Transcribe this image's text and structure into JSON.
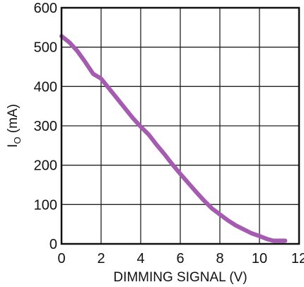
{
  "chart_data": {
    "type": "line",
    "xlabel": "DIMMING SIGNAL (V)",
    "ylabel": "I",
    "ylabel_sub": "O",
    "ylabel_unit": " (mA)",
    "xlim": [
      0,
      12
    ],
    "ylim": [
      0,
      600
    ],
    "xticks": [
      "0",
      "2",
      "4",
      "6",
      "8",
      "10",
      "12"
    ],
    "yticks": [
      "0",
      "100",
      "200",
      "300",
      "400",
      "500",
      "600"
    ],
    "grid": true,
    "line_color": "#A45BB0",
    "series": [
      {
        "x": [
          0,
          0.4,
          0.8,
          1.2,
          1.6,
          2.0,
          2.4,
          2.8,
          3.2,
          3.6,
          4.0,
          4.4,
          4.8,
          5.2,
          5.6,
          6.0,
          6.4,
          6.8,
          7.2,
          7.6,
          8.0,
          8.4,
          8.8,
          9.2,
          9.6,
          10.0,
          10.4,
          10.7,
          11.0,
          11.3
        ],
        "y": [
          528,
          512,
          490,
          462,
          432,
          420,
          395,
          370,
          345,
          320,
          298,
          278,
          252,
          228,
          202,
          178,
          155,
          132,
          110,
          90,
          75,
          60,
          47,
          37,
          27,
          20,
          12,
          8,
          8,
          8
        ]
      }
    ]
  }
}
